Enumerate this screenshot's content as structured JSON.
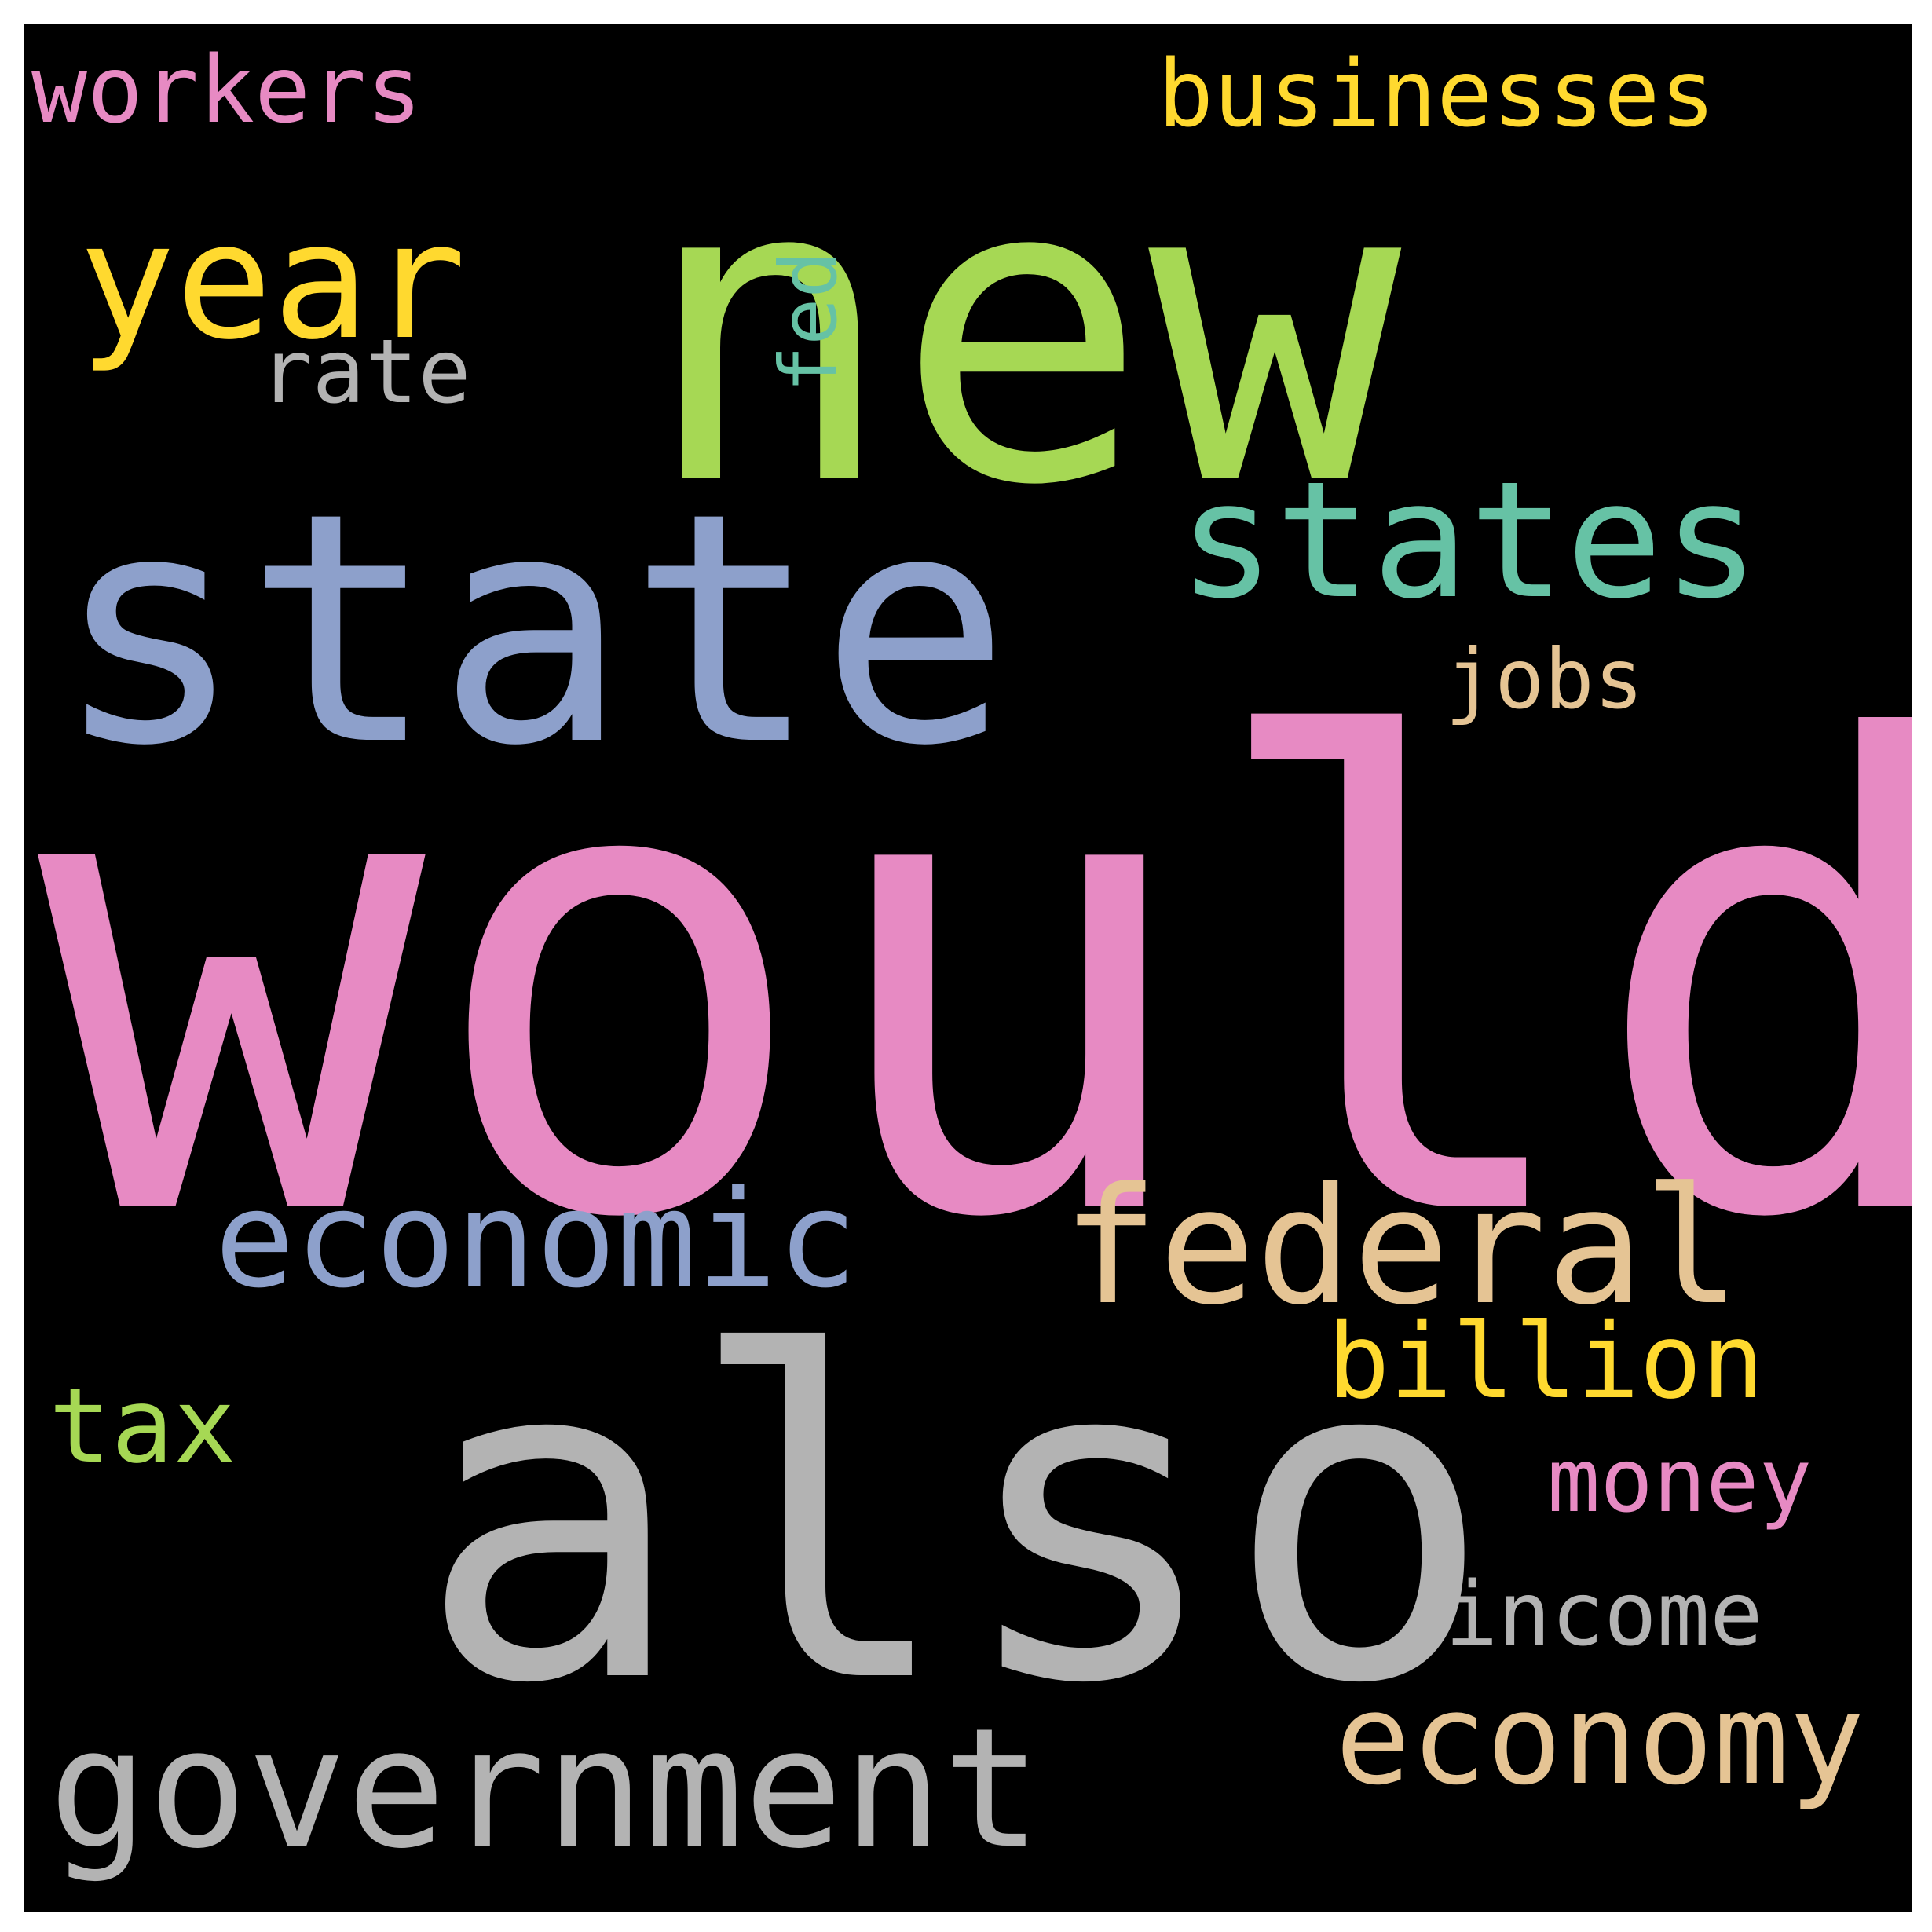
{
  "wordcloud": {
    "background": "#000000",
    "words": [
      {
        "id": "would",
        "text": "would",
        "color": "#E78AC3"
      },
      {
        "id": "also",
        "text": "also",
        "color": "#B3B3B3"
      },
      {
        "id": "new",
        "text": "new",
        "color": "#A6D854"
      },
      {
        "id": "state",
        "text": "state",
        "color": "#8DA0CB"
      },
      {
        "id": "government",
        "text": "government",
        "color": "#B3B3B3"
      },
      {
        "id": "federal",
        "text": "federal",
        "color": "#E5C494"
      },
      {
        "id": "states",
        "text": "states",
        "color": "#66C2A5"
      },
      {
        "id": "year",
        "text": "year",
        "color": "#FFD92F"
      },
      {
        "id": "economic",
        "text": "economic",
        "color": "#8DA0CB"
      },
      {
        "id": "economy",
        "text": "economy",
        "color": "#E5C494"
      },
      {
        "id": "businesses",
        "text": "businesses",
        "color": "#FFD92F"
      },
      {
        "id": "workers",
        "text": "workers",
        "color": "#E78AC3"
      },
      {
        "id": "billion",
        "text": "billion",
        "color": "#FFD92F"
      },
      {
        "id": "tax",
        "text": "tax",
        "color": "#A6D854"
      },
      {
        "id": "money",
        "text": "money",
        "color": "#E78AC3"
      },
      {
        "id": "income",
        "text": "income",
        "color": "#B3B3B3"
      },
      {
        "id": "rate",
        "text": "rate",
        "color": "#B3B3B3"
      },
      {
        "id": "jobs",
        "text": "jobs",
        "color": "#E5C494"
      },
      {
        "id": "fed",
        "text": "fed",
        "color": "#66C2A5",
        "rotated": true
      }
    ]
  }
}
